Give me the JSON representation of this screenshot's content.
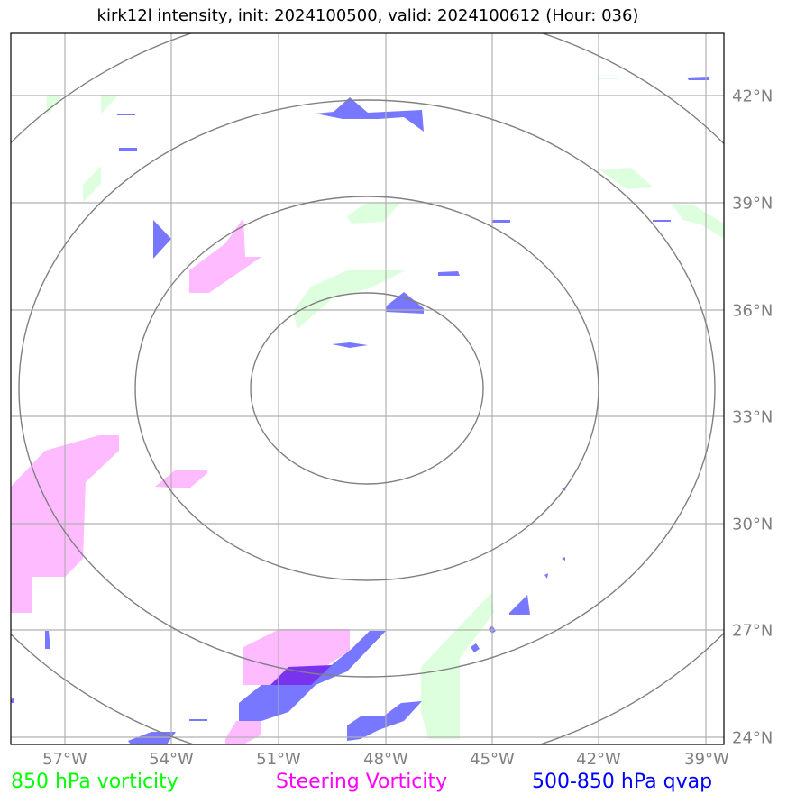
{
  "title": "kirk12l intensity, init: 2024100500, valid: 2024100612 (Hour: 036)",
  "map": {
    "lon_ticks": [
      "57°W",
      "54°W",
      "51°W",
      "48°W",
      "45°W",
      "42°W",
      "39°W"
    ],
    "lat_ticks": [
      "42°N",
      "39°N",
      "36°N",
      "33°N",
      "30°N",
      "27°N",
      "24°N"
    ],
    "gridline_color": "#b0b0b0",
    "range_ring_color": "#808080",
    "range_rings": 4
  },
  "legend": [
    {
      "label": "850 hPa vorticity",
      "color": "#00ff00"
    },
    {
      "label": "Steering Vorticity",
      "color": "#ff00ff"
    },
    {
      "label": "500-850 hPa qvap",
      "color": "#0000ff"
    }
  ],
  "fields": {
    "vorticity_850_color": "#ddffdd",
    "steering_vorticity_color": "#ffbbff",
    "qvap_color": "#7777ff",
    "overlap_color": "#7733ee"
  }
}
